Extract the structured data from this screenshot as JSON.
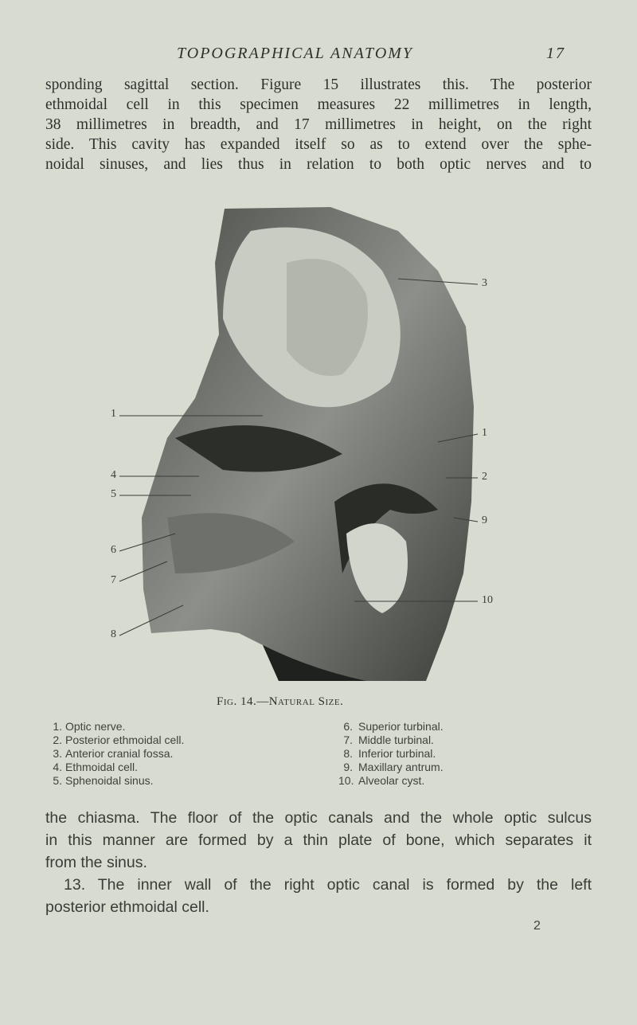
{
  "header": {
    "title": "TOPOGRAPHICAL ANATOMY",
    "page_number": "17"
  },
  "body_top": {
    "lines": [
      "sponding sagittal section. Figure 15 illustrates this. The posterior",
      "ethmoidal cell in this specimen measures 22 millimetres in length,",
      "38 millimetres in breadth, and 17 millimetres in height, on the right",
      "side. This cavity has expanded itself so as to extend over the sphe-",
      "noidal sinuses, and lies thus in relation to both optic nerves and to"
    ]
  },
  "figure": {
    "labels_left": [
      "1",
      "4",
      "5",
      "6",
      "7",
      "8"
    ],
    "labels_right": [
      "3",
      "1",
      "2",
      "9",
      "10"
    ],
    "caption": "Fig. 14.—Natural Size.",
    "legend": [
      {
        "number": "1.",
        "text": "Optic nerve."
      },
      {
        "number": "2.",
        "text": "Posterior ethmoidal cell."
      },
      {
        "number": "3.",
        "text": "Anterior cranial fossa."
      },
      {
        "number": "4.",
        "text": "Ethmoidal cell."
      },
      {
        "number": "5.",
        "text": "Sphenoidal sinus."
      },
      {
        "number": "6.",
        "text": "Superior turbinal."
      },
      {
        "number": "7.",
        "text": "Middle turbinal."
      },
      {
        "number": "8.",
        "text": "Inferior turbinal."
      },
      {
        "number": "9.",
        "text": "Maxillary antrum."
      },
      {
        "number": "10.",
        "text": "Alveolar cyst."
      }
    ]
  },
  "body_bottom": {
    "lines": [
      "the chiasma. The floor of the optic canals and the whole optic sulcus",
      "in this manner are formed by a thin plate of bone, which separates it",
      "from the sinus.",
      "13. The inner wall of the right optic canal is formed by the left",
      "posterior ethmoidal cell."
    ]
  },
  "signature": "2"
}
